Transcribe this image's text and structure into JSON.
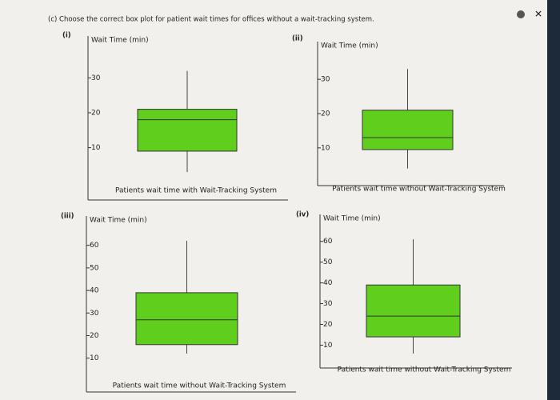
{
  "question": "(c) Choose the correct box plot for patient wait times for offices without a wait-tracking system.",
  "chart_data": [
    {
      "type": "box",
      "label": "(i)",
      "ylabel": "Wait Time (min)",
      "xlabel": "Patients wait time with Wait-Tracking System",
      "values": {
        "whisker_low": 3,
        "q1": 9,
        "median": 18,
        "q3": 21,
        "whisker_high": 32
      },
      "ylim": [
        -5,
        42
      ],
      "yticks": [
        10,
        20,
        30
      ],
      "color": "#5fce1d"
    },
    {
      "type": "box",
      "label": "(ii)",
      "ylabel": "Wait Time (min)",
      "xlabel": "Patients wait time without Wait-Tracking System",
      "values": {
        "whisker_low": 4,
        "q1": 9.5,
        "median": 13,
        "q3": 21,
        "whisker_high": 33
      },
      "ylim": [
        -1,
        41
      ],
      "yticks": [
        10,
        20,
        30
      ],
      "color": "#5fce1d"
    },
    {
      "type": "box",
      "label": "(iii)",
      "ylabel": "Wait Time (min)",
      "xlabel": "Patients wait time without Wait-Tracking System",
      "values": {
        "whisker_low": 12,
        "q1": 16,
        "median": 27,
        "q3": 39,
        "whisker_high": 62
      },
      "ylim": [
        -5,
        73
      ],
      "yticks": [
        10,
        20,
        30,
        40,
        50,
        60
      ],
      "color": "#5fce1d"
    },
    {
      "type": "box",
      "label": "(iv)",
      "ylabel": "Wait Time (min)",
      "xlabel": "Patients wait time without Wait-Tracking System",
      "values": {
        "whisker_low": 6,
        "q1": 14,
        "median": 24,
        "q3": 39,
        "whisker_high": 61
      },
      "ylim": [
        -1,
        73
      ],
      "yticks": [
        10,
        20,
        30,
        40,
        50,
        60
      ],
      "color": "#5fce1d"
    }
  ]
}
